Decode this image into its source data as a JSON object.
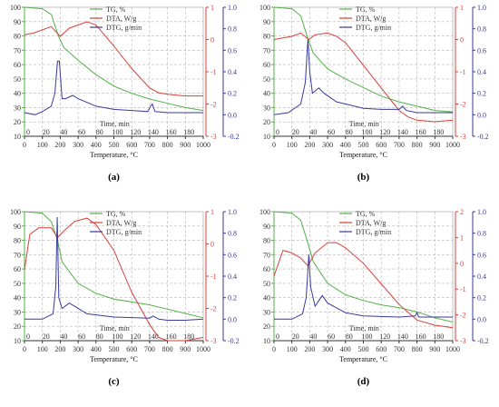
{
  "colors": {
    "tg": "#53b148",
    "dta": "#d8403c",
    "dtg": "#3a3a9e",
    "grid": "#b5b5b5"
  },
  "legend": {
    "tg": "TG, %",
    "dta": "DTA, W/g",
    "dtg": "DTG, g/min"
  },
  "x_axis_title": "Temperature, °C",
  "time_axis_title": "Time, min",
  "panel_labels": [
    "(a)",
    "(b)",
    "(c)",
    "(d)"
  ],
  "chart_data": [
    {
      "type": "line",
      "label": "(a)",
      "xlabel": "Temperature, °C",
      "x2label": "Time, min",
      "xlim": [
        0,
        1000
      ],
      "x2lim": [
        0,
        200
      ],
      "x_ticks": [
        0,
        100,
        200,
        300,
        400,
        500,
        600,
        700,
        800,
        900,
        1000
      ],
      "x2_ticks": [
        0,
        20,
        40,
        60,
        80,
        100,
        120,
        140,
        160,
        180
      ],
      "y_left": {
        "label": "TG, %",
        "lim": [
          10,
          100
        ],
        "ticks": [
          10,
          20,
          30,
          40,
          50,
          60,
          70,
          80,
          90,
          100
        ]
      },
      "y_right1": {
        "label": "DTA, W/g",
        "lim": [
          -3,
          1
        ],
        "ticks": [
          -3,
          -2,
          -1,
          0,
          1
        ]
      },
      "y_right2": {
        "label": "DTG, g/min",
        "lim": [
          -0.2,
          1.0
        ],
        "ticks": [
          -0.2,
          0.0,
          0.2,
          0.4,
          0.6,
          0.8,
          1.0
        ]
      },
      "series": [
        {
          "name": "TG, %",
          "axis": "left",
          "points": [
            [
              0,
              100
            ],
            [
              100,
              99
            ],
            [
              150,
              95
            ],
            [
              190,
              80
            ],
            [
              220,
              72
            ],
            [
              300,
              63
            ],
            [
              400,
              53
            ],
            [
              500,
              45
            ],
            [
              600,
              40
            ],
            [
              700,
              36
            ],
            [
              800,
              33
            ],
            [
              900,
              30
            ],
            [
              1000,
              28
            ]
          ]
        },
        {
          "name": "DTA, W/g",
          "axis": "right1",
          "points": [
            [
              0,
              0.15
            ],
            [
              50,
              0.2
            ],
            [
              100,
              0.3
            ],
            [
              150,
              0.4
            ],
            [
              200,
              0.1
            ],
            [
              250,
              0.35
            ],
            [
              300,
              0.45
            ],
            [
              350,
              0.55
            ],
            [
              400,
              0.45
            ],
            [
              500,
              -0.2
            ],
            [
              600,
              -0.9
            ],
            [
              700,
              -1.5
            ],
            [
              750,
              -1.65
            ],
            [
              800,
              -1.7
            ],
            [
              900,
              -1.75
            ],
            [
              1000,
              -1.75
            ]
          ]
        },
        {
          "name": "DTG, g/min",
          "axis": "right2",
          "points": [
            [
              0,
              0.02
            ],
            [
              60,
              0.0
            ],
            [
              100,
              0.03
            ],
            [
              150,
              0.08
            ],
            [
              170,
              0.2
            ],
            [
              185,
              0.5
            ],
            [
              195,
              0.5
            ],
            [
              210,
              0.15
            ],
            [
              230,
              0.15
            ],
            [
              270,
              0.18
            ],
            [
              300,
              0.15
            ],
            [
              400,
              0.08
            ],
            [
              500,
              0.05
            ],
            [
              600,
              0.04
            ],
            [
              690,
              0.03
            ],
            [
              705,
              0.08
            ],
            [
              715,
              0.1
            ],
            [
              730,
              0.03
            ],
            [
              800,
              0.02
            ],
            [
              900,
              0.02
            ],
            [
              1000,
              0.02
            ]
          ]
        }
      ]
    },
    {
      "type": "line",
      "label": "(b)",
      "xlabel": "Temperature, °C",
      "x2label": "Time, min",
      "xlim": [
        0,
        1000
      ],
      "x2lim": [
        0,
        200
      ],
      "x_ticks": [
        0,
        100,
        200,
        300,
        400,
        500,
        600,
        700,
        800,
        900,
        1000
      ],
      "x2_ticks": [
        0,
        20,
        40,
        60,
        80,
        100,
        120,
        140,
        160,
        180
      ],
      "y_left": {
        "label": "TG, %",
        "lim": [
          10,
          100
        ],
        "ticks": [
          10,
          20,
          30,
          40,
          50,
          60,
          70,
          80,
          90,
          100
        ]
      },
      "y_right1": {
        "label": "DTA, W/g",
        "lim": [
          -3,
          1
        ],
        "ticks": [
          -3,
          -2,
          -1,
          0,
          1
        ]
      },
      "y_right2": {
        "label": "DTG, g/min",
        "lim": [
          -0.2,
          1.0
        ],
        "ticks": [
          -0.2,
          0.0,
          0.2,
          0.4,
          0.6,
          0.8,
          1.0
        ]
      },
      "series": [
        {
          "name": "TG, %",
          "axis": "left",
          "points": [
            [
              0,
              100
            ],
            [
              100,
              99
            ],
            [
              150,
              94
            ],
            [
              190,
              78
            ],
            [
              220,
              68
            ],
            [
              300,
              57
            ],
            [
              400,
              50
            ],
            [
              500,
              44
            ],
            [
              600,
              38
            ],
            [
              700,
              34
            ],
            [
              800,
              31
            ],
            [
              900,
              28
            ],
            [
              1000,
              27
            ]
          ]
        },
        {
          "name": "DTA, W/g",
          "axis": "right1",
          "points": [
            [
              0,
              0.0
            ],
            [
              50,
              0.05
            ],
            [
              100,
              0.1
            ],
            [
              150,
              0.2
            ],
            [
              195,
              0.0
            ],
            [
              230,
              0.15
            ],
            [
              300,
              0.2
            ],
            [
              350,
              0.1
            ],
            [
              400,
              -0.1
            ],
            [
              500,
              -0.8
            ],
            [
              600,
              -1.5
            ],
            [
              700,
              -2.2
            ],
            [
              750,
              -2.4
            ],
            [
              800,
              -2.5
            ],
            [
              900,
              -2.55
            ],
            [
              1000,
              -2.5
            ]
          ]
        },
        {
          "name": "DTG, g/min",
          "axis": "right2",
          "points": [
            [
              0,
              0.0
            ],
            [
              80,
              0.02
            ],
            [
              150,
              0.1
            ],
            [
              175,
              0.3
            ],
            [
              190,
              0.7
            ],
            [
              200,
              0.4
            ],
            [
              215,
              0.2
            ],
            [
              250,
              0.25
            ],
            [
              280,
              0.2
            ],
            [
              350,
              0.12
            ],
            [
              500,
              0.06
            ],
            [
              600,
              0.05
            ],
            [
              700,
              0.05
            ],
            [
              720,
              0.08
            ],
            [
              740,
              0.04
            ],
            [
              800,
              0.02
            ],
            [
              900,
              0.02
            ],
            [
              1000,
              0.02
            ]
          ]
        }
      ]
    },
    {
      "type": "line",
      "label": "(c)",
      "xlabel": "Temperature, °C",
      "x2label": "Time, min",
      "xlim": [
        0,
        1000
      ],
      "x2lim": [
        0,
        200
      ],
      "x_ticks": [
        0,
        100,
        200,
        300,
        400,
        500,
        600,
        700,
        800,
        900,
        1000
      ],
      "x2_ticks": [
        0,
        20,
        40,
        60,
        80,
        100,
        120,
        140,
        160,
        180
      ],
      "y_left": {
        "label": "TG, %",
        "lim": [
          10,
          100
        ],
        "ticks": [
          10,
          20,
          30,
          40,
          50,
          60,
          70,
          80,
          90,
          100
        ]
      },
      "y_right1": {
        "label": "DTA, W/g",
        "lim": [
          -3,
          1
        ],
        "ticks": [
          -3,
          -2,
          -1,
          0,
          1
        ]
      },
      "y_right2": {
        "label": "DTG, g/min",
        "lim": [
          -0.2,
          1.0
        ],
        "ticks": [
          -0.2,
          0.0,
          0.2,
          0.4,
          0.6,
          0.8,
          1.0
        ]
      },
      "series": [
        {
          "name": "TG, %",
          "axis": "left",
          "points": [
            [
              0,
              100
            ],
            [
              100,
              99
            ],
            [
              150,
              93
            ],
            [
              185,
              80
            ],
            [
              210,
              65
            ],
            [
              300,
              50
            ],
            [
              400,
              43
            ],
            [
              500,
              39
            ],
            [
              600,
              37
            ],
            [
              700,
              35
            ],
            [
              800,
              32
            ],
            [
              900,
              29
            ],
            [
              1000,
              26
            ]
          ]
        },
        {
          "name": "DTA, W/g",
          "axis": "right1",
          "points": [
            [
              0,
              -0.8
            ],
            [
              30,
              0.3
            ],
            [
              80,
              0.5
            ],
            [
              150,
              0.5
            ],
            [
              185,
              0.2
            ],
            [
              220,
              0.4
            ],
            [
              280,
              0.7
            ],
            [
              350,
              0.8
            ],
            [
              400,
              0.6
            ],
            [
              500,
              -0.2
            ],
            [
              600,
              -1.5
            ],
            [
              700,
              -2.5
            ],
            [
              750,
              -2.9
            ],
            [
              800,
              -3.0
            ],
            [
              900,
              -3.0
            ],
            [
              1000,
              -2.9
            ]
          ]
        },
        {
          "name": "DTG, g/min",
          "axis": "right2",
          "points": [
            [
              0,
              0.0
            ],
            [
              100,
              0.0
            ],
            [
              160,
              0.05
            ],
            [
              175,
              0.3
            ],
            [
              183,
              0.95
            ],
            [
              192,
              0.2
            ],
            [
              210,
              0.1
            ],
            [
              250,
              0.15
            ],
            [
              280,
              0.12
            ],
            [
              350,
              0.05
            ],
            [
              500,
              0.02
            ],
            [
              700,
              0.01
            ],
            [
              720,
              0.03
            ],
            [
              750,
              0.0
            ],
            [
              800,
              -0.01
            ],
            [
              900,
              -0.01
            ],
            [
              1000,
              0.0
            ]
          ]
        }
      ]
    },
    {
      "type": "line",
      "label": "(d)",
      "xlabel": "Temperature, °C",
      "x2label": "Time, min",
      "xlim": [
        0,
        1000
      ],
      "x2lim": [
        0,
        200
      ],
      "x_ticks": [
        0,
        100,
        200,
        300,
        400,
        500,
        600,
        700,
        800,
        900,
        1000
      ],
      "x2_ticks": [
        0,
        20,
        40,
        60,
        80,
        100,
        120,
        140,
        160,
        180
      ],
      "y_left": {
        "label": "TG, %",
        "lim": [
          10,
          100
        ],
        "ticks": [
          10,
          20,
          30,
          40,
          50,
          60,
          70,
          80,
          90,
          100
        ]
      },
      "y_right1": {
        "label": "DTA, W/g",
        "lim": [
          -3,
          2
        ],
        "ticks": [
          -3,
          -2,
          -1,
          0,
          1,
          2
        ]
      },
      "y_right2": {
        "label": "DTG, g/min",
        "lim": [
          -0.2,
          1.0
        ],
        "ticks": [
          -0.2,
          0.0,
          0.2,
          0.4,
          0.6,
          0.8,
          1.0
        ]
      },
      "series": [
        {
          "name": "TG, %",
          "axis": "left",
          "points": [
            [
              0,
              100
            ],
            [
              100,
              99
            ],
            [
              150,
              94
            ],
            [
              190,
              78
            ],
            [
              220,
              65
            ],
            [
              300,
              50
            ],
            [
              400,
              42
            ],
            [
              500,
              38
            ],
            [
              600,
              35
            ],
            [
              700,
              33
            ],
            [
              800,
              30
            ],
            [
              900,
              26
            ],
            [
              1000,
              23
            ]
          ]
        },
        {
          "name": "DTA, W/g",
          "axis": "right1",
          "points": [
            [
              0,
              -0.5
            ],
            [
              50,
              0.5
            ],
            [
              100,
              0.4
            ],
            [
              150,
              0.2
            ],
            [
              190,
              -0.1
            ],
            [
              230,
              0.4
            ],
            [
              300,
              0.8
            ],
            [
              350,
              0.8
            ],
            [
              400,
              0.6
            ],
            [
              500,
              0.0
            ],
            [
              600,
              -0.8
            ],
            [
              700,
              -1.6
            ],
            [
              800,
              -2.2
            ],
            [
              900,
              -2.4
            ],
            [
              1000,
              -2.5
            ]
          ]
        },
        {
          "name": "DTG, g/min",
          "axis": "right2",
          "points": [
            [
              0,
              0.0
            ],
            [
              100,
              0.0
            ],
            [
              160,
              0.05
            ],
            [
              180,
              0.2
            ],
            [
              195,
              0.6
            ],
            [
              205,
              0.3
            ],
            [
              230,
              0.12
            ],
            [
              270,
              0.22
            ],
            [
              300,
              0.15
            ],
            [
              400,
              0.06
            ],
            [
              500,
              0.03
            ],
            [
              700,
              0.02
            ],
            [
              790,
              0.03
            ],
            [
              800,
              0.06
            ],
            [
              810,
              0.02
            ],
            [
              900,
              0.02
            ],
            [
              1000,
              0.02
            ]
          ]
        }
      ]
    }
  ]
}
